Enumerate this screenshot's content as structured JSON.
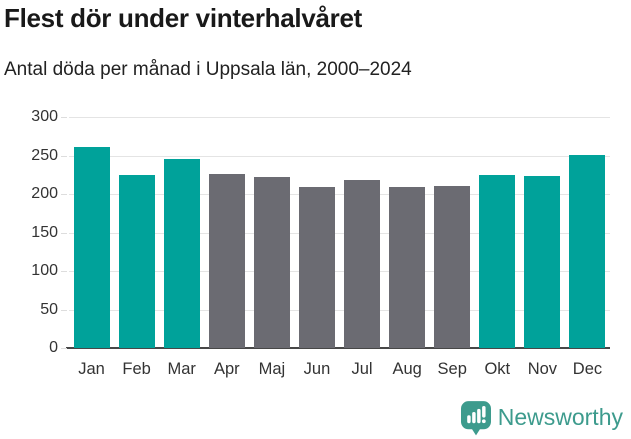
{
  "chart_data": {
    "type": "bar",
    "title": "Flest dör under vinterhalvåret",
    "subtitle": "Antal döda per månad i Uppsala län, 2000–2024",
    "categories": [
      "Jan",
      "Feb",
      "Mar",
      "Apr",
      "Maj",
      "Jun",
      "Jul",
      "Aug",
      "Sep",
      "Okt",
      "Nov",
      "Dec"
    ],
    "values": [
      261,
      225,
      246,
      226,
      222,
      209,
      218,
      209,
      211,
      225,
      223,
      251
    ],
    "bar_colors": [
      "#00A29A",
      "#00A29A",
      "#00A29A",
      "#6B6B72",
      "#6B6B72",
      "#6B6B72",
      "#6B6B72",
      "#6B6B72",
      "#6B6B72",
      "#00A29A",
      "#00A29A",
      "#00A29A"
    ],
    "xlabel": "",
    "ylabel": "",
    "ylim": [
      0,
      300
    ],
    "yticks": [
      0,
      50,
      100,
      150,
      200,
      250,
      300
    ],
    "grid": true,
    "legend": "none",
    "colors": {
      "highlight": "#00A29A",
      "muted": "#6B6B72",
      "gridline": "#E4E4E4",
      "tick_mark": "#DDDDDD",
      "axis_line": "#474747",
      "tick_label": "#333333",
      "title": "#191919",
      "subtitle": "#222222"
    }
  },
  "footer": {
    "brand": "Newsworthy",
    "brand_color": "#3D9B8D"
  }
}
